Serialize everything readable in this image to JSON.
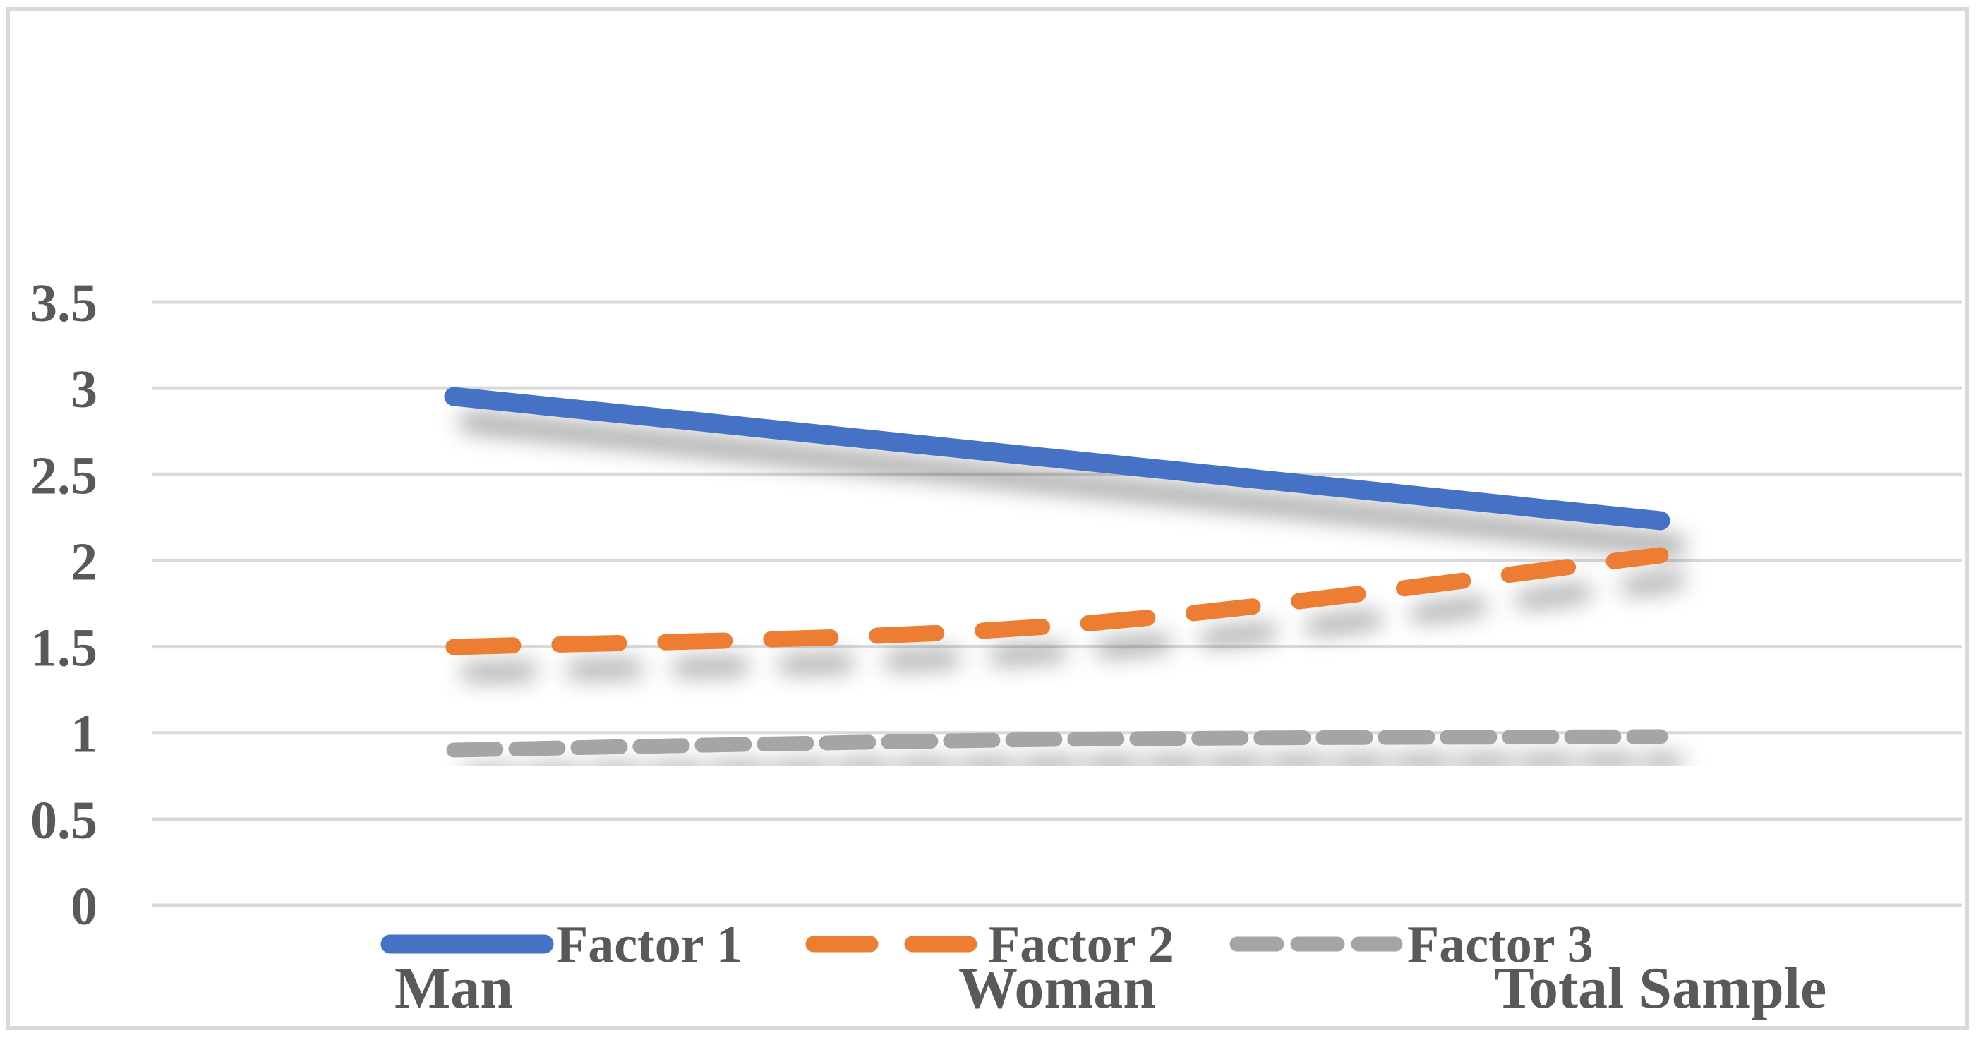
{
  "figure": {
    "background": "#ffffff",
    "border_color": "#d9d9d9"
  },
  "chart_data": {
    "type": "line",
    "title": "",
    "xlabel": "",
    "ylabel": "",
    "categories": [
      "Man",
      "Woman",
      "Total Sample"
    ],
    "series": [
      {
        "name": "Factor 1",
        "values": [
          2.95,
          2.59,
          2.23
        ],
        "color": "#4472C4",
        "dash": "solid"
      },
      {
        "name": "Factor 2",
        "values": [
          1.5,
          1.62,
          2.03
        ],
        "color": "#ED7D31",
        "dash": "dashed"
      },
      {
        "name": "Factor 3",
        "values": [
          0.9,
          0.96,
          0.98
        ],
        "color": "#A5A5A5",
        "dash": "dashed-short"
      }
    ],
    "ylim": [
      0,
      3.5
    ],
    "y_ticks": [
      0,
      0.5,
      1,
      1.5,
      2,
      2.5,
      3,
      3.5
    ],
    "y_tick_labels": [
      "0",
      "0.5",
      "1",
      "1.5",
      "2",
      "2.5",
      "3",
      "3.5"
    ],
    "grid": true,
    "legend_position": "bottom",
    "axis_text_color": "#595959",
    "gridline_color": "#D9D9D9",
    "line_shadow": true,
    "smoothed": true
  }
}
